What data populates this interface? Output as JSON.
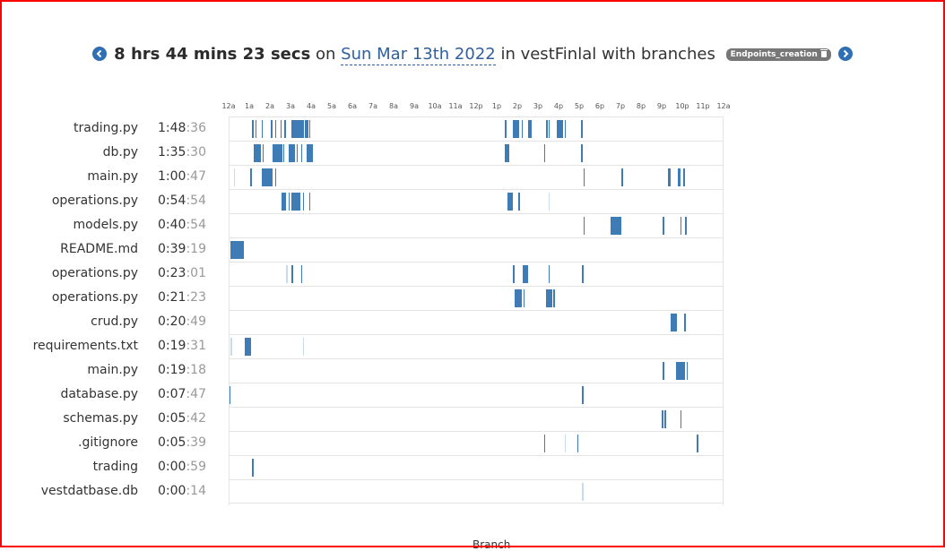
{
  "header": {
    "prev_icon": "chevron-left-icon",
    "next_icon": "chevron-right-icon",
    "duration": "8 hrs 44 mins 23 secs",
    "on_word": "on",
    "date": "Sun Mar 13th 2022",
    "in_text": "in vestFinlal with branches",
    "branch": "Endpoints_creation",
    "branch_icon": "trash-icon"
  },
  "timeline": {
    "ticks": [
      "12a",
      "1a",
      "2a",
      "3a",
      "4a",
      "5a",
      "6a",
      "7a",
      "8a",
      "9a",
      "10a",
      "11a",
      "12p",
      "1p",
      "2p",
      "3p",
      "4p",
      "5p",
      "6p",
      "7p",
      "8p",
      "9p",
      "10p",
      "11p",
      "12a"
    ],
    "rows": [
      {
        "file": "trading.py",
        "time_hm": "1:48",
        "time_sec": ":36",
        "segments": [
          [
            1.15,
            0.04
          ],
          [
            1.3,
            0.05
          ],
          [
            1.6,
            0.05
          ],
          [
            2.05,
            0.03
          ],
          [
            2.25,
            0.05
          ],
          [
            2.5,
            0.04
          ],
          [
            2.7,
            0.05
          ],
          [
            3.05,
            0.6,
            "solid"
          ],
          [
            3.7,
            0.05
          ],
          [
            3.8,
            0.05
          ],
          [
            3.9,
            0.05
          ],
          [
            13.4,
            0.05
          ],
          [
            13.8,
            0.3
          ],
          [
            14.2,
            0.05
          ],
          [
            14.5,
            0.2
          ],
          [
            15.4,
            0.04
          ],
          [
            15.5,
            0.04
          ],
          [
            15.9,
            0.3
          ],
          [
            16.3,
            0.04
          ],
          [
            17.1,
            0.05
          ]
        ]
      },
      {
        "file": "db.py",
        "time_hm": "1:35",
        "time_sec": ":30",
        "segments": [
          [
            1.2,
            0.35
          ],
          [
            1.65,
            0.05
          ],
          [
            2.15,
            0.45
          ],
          [
            2.65,
            0.05
          ],
          [
            2.9,
            0.3
          ],
          [
            3.3,
            0.04
          ],
          [
            3.5,
            0.04
          ],
          [
            3.8,
            0.3
          ],
          [
            13.4,
            0.2
          ],
          [
            15.3,
            0.04
          ],
          [
            17.1,
            0.05
          ]
        ]
      },
      {
        "file": "main.py",
        "time_hm": "1:00",
        "time_sec": ":47",
        "segments": [
          [
            0.25,
            0.03,
            "light"
          ],
          [
            1.05,
            0.05
          ],
          [
            1.6,
            0.55
          ],
          [
            2.25,
            0.04
          ],
          [
            17.2,
            0.05
          ],
          [
            19.05,
            0.05
          ],
          [
            21.3,
            0.15
          ],
          [
            21.8,
            0.1
          ],
          [
            22.05,
            0.1
          ]
        ]
      },
      {
        "file": "operations.py",
        "time_hm": "0:54",
        "time_sec": ":54",
        "segments": [
          [
            2.55,
            0.25
          ],
          [
            2.9,
            0.05
          ],
          [
            3.05,
            0.45
          ],
          [
            3.6,
            0.04
          ],
          [
            3.9,
            0.04
          ],
          [
            13.5,
            0.3
          ],
          [
            14.05,
            0.05
          ],
          [
            15.5,
            0.03,
            "light"
          ]
        ]
      },
      {
        "file": "models.py",
        "time_hm": "0:40",
        "time_sec": ":54",
        "segments": [
          [
            17.2,
            0.04
          ],
          [
            18.5,
            0.55
          ],
          [
            21.05,
            0.05
          ],
          [
            21.9,
            0.04
          ],
          [
            22.15,
            0.04
          ]
        ]
      },
      {
        "file": "README.md",
        "time_hm": "0:39",
        "time_sec": ":19",
        "segments": [
          [
            0.1,
            0.65,
            "solid"
          ]
        ]
      },
      {
        "file": "operations.py",
        "time_hm": "0:23",
        "time_sec": ":01",
        "segments": [
          [
            2.8,
            0.04,
            "light"
          ],
          [
            3.05,
            0.04
          ],
          [
            3.5,
            0.03
          ],
          [
            13.8,
            0.05
          ],
          [
            14.25,
            0.25
          ],
          [
            15.5,
            0.05
          ],
          [
            17.15,
            0.05
          ]
        ]
      },
      {
        "file": "operations.py",
        "time_hm": "0:21",
        "time_sec": ":23",
        "segments": [
          [
            13.85,
            0.35
          ],
          [
            14.3,
            0.05
          ],
          [
            15.4,
            0.3
          ],
          [
            15.75,
            0.05
          ]
        ]
      },
      {
        "file": "crud.py",
        "time_hm": "0:20",
        "time_sec": ":49",
        "segments": [
          [
            21.45,
            0.3,
            "solid"
          ],
          [
            22.1,
            0.04
          ]
        ]
      },
      {
        "file": "requirements.txt",
        "time_hm": "0:19",
        "time_sec": ":31",
        "segments": [
          [
            0.1,
            0.04,
            "light"
          ],
          [
            0.8,
            0.3,
            "solid"
          ],
          [
            3.6,
            0.03,
            "light"
          ]
        ]
      },
      {
        "file": "main.py",
        "time_hm": "0:19",
        "time_sec": ":18",
        "segments": [
          [
            21.05,
            0.05
          ],
          [
            21.7,
            0.45
          ],
          [
            22.2,
            0.04
          ]
        ]
      },
      {
        "file": "database.py",
        "time_hm": "0:07",
        "time_sec": ":47",
        "segments": [
          [
            0.02,
            0.08,
            "solid"
          ],
          [
            17.15,
            0.05
          ]
        ]
      },
      {
        "file": "schemas.py",
        "time_hm": "0:05",
        "time_sec": ":42",
        "segments": [
          [
            21.0,
            0.1
          ],
          [
            21.15,
            0.03
          ],
          [
            21.9,
            0.04
          ]
        ]
      },
      {
        "file": ".gitignore",
        "time_hm": "0:05",
        "time_sec": ":39",
        "segments": [
          [
            15.3,
            0.04
          ],
          [
            16.3,
            0.03,
            "light"
          ],
          [
            16.9,
            0.04
          ],
          [
            22.7,
            0.04
          ]
        ]
      },
      {
        "file": "trading",
        "time_hm": "0:00",
        "time_sec": ":59",
        "segments": [
          [
            1.15,
            0.04
          ]
        ]
      },
      {
        "file": "vestdatbase.db",
        "time_hm": "0:00",
        "time_sec": ":14",
        "segments": [
          [
            17.15,
            0.04,
            "light"
          ]
        ]
      }
    ]
  },
  "colors": {
    "segment": "#3f7bb4",
    "segment_light": "#c9dced",
    "link": "#2f5f9e",
    "nav": "#2f6fb3"
  },
  "footer": {
    "cut_text": "Branch"
  }
}
